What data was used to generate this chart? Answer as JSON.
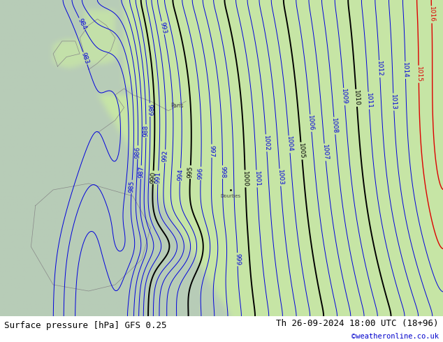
{
  "title_left": "Surface pressure [hPa] GFS 0.25",
  "title_right": "Th 26-09-2024 18:00 UTC (18+96)",
  "watermark": "©weatheronline.co.uk",
  "ocean_color": "#b8ceb8",
  "land_color": "#c8e0a8",
  "contour_color_blue": "#0000dd",
  "contour_color_black": "#000000",
  "contour_color_red": "#dd0000",
  "label_fontsize": 6.5,
  "title_fontsize": 9,
  "watermark_color": "#0000cc",
  "figsize": [
    6.34,
    4.9
  ],
  "dpi": 100,
  "pressure_min": 983,
  "pressure_max": 1016,
  "black_levels": [
    990,
    995,
    1000,
    1005,
    1010
  ],
  "red_levels": [
    1015,
    1016
  ],
  "all_levels": [
    983,
    984,
    985,
    986,
    987,
    988,
    989,
    990,
    991,
    992,
    993,
    994,
    995,
    996,
    997,
    998,
    999,
    1000,
    1001,
    1002,
    1003,
    1004,
    1005,
    1006,
    1007,
    1008,
    1009,
    1010,
    1011,
    1012,
    1013,
    1014,
    1015,
    1016
  ]
}
